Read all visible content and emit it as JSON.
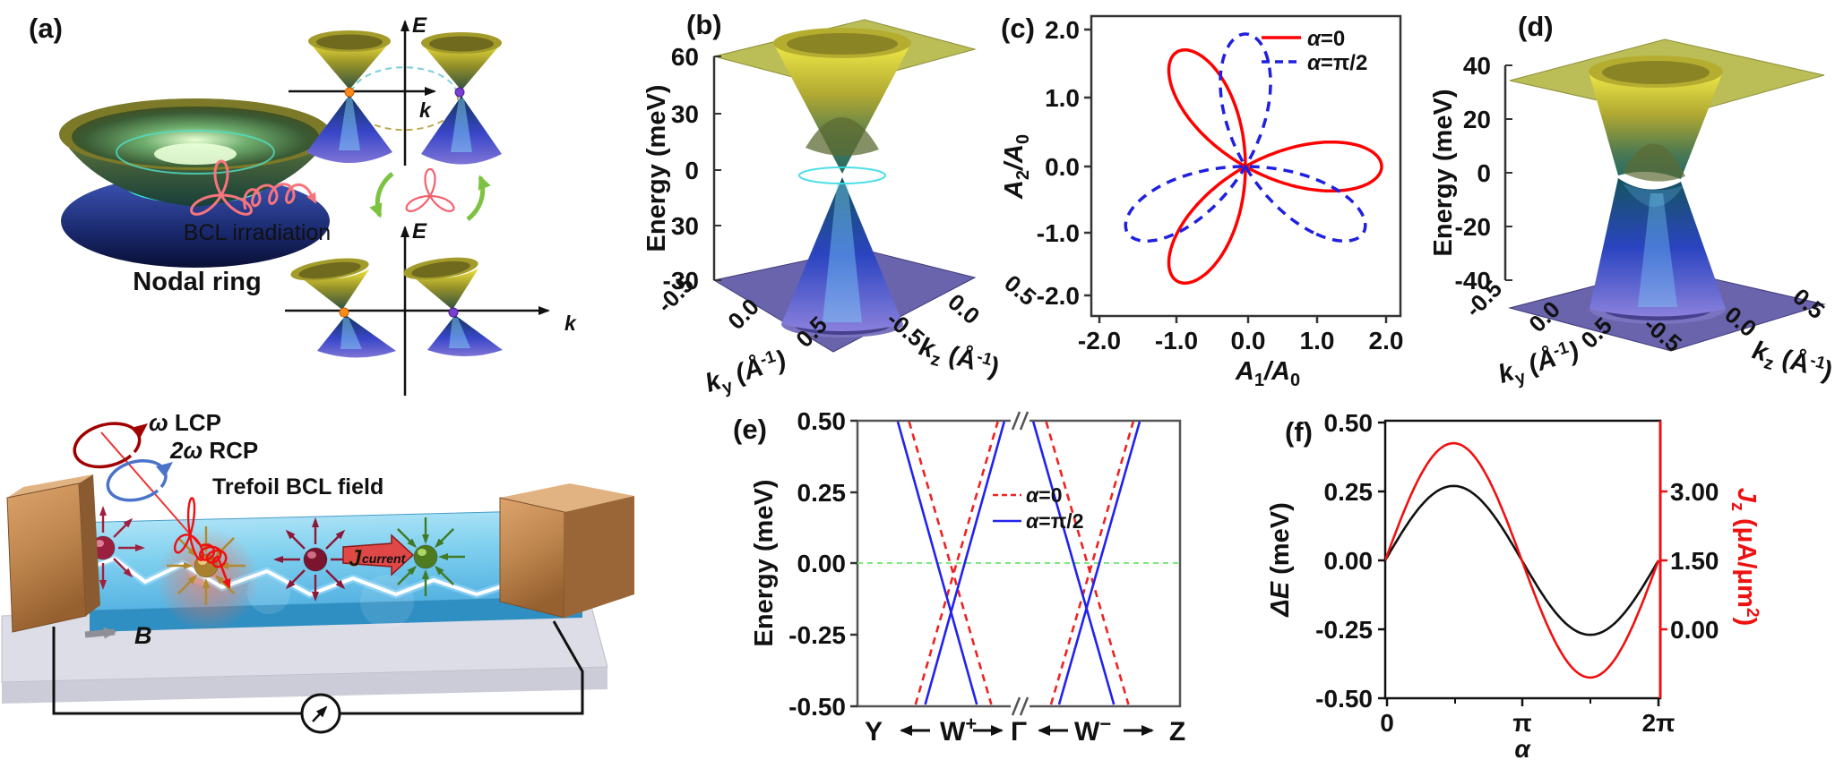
{
  "a": {
    "label": "(a)",
    "nodal_ring": "Nodal ring",
    "bcl": "BCL irradiation",
    "E1": "E",
    "k1": "k",
    "E2": "E",
    "k2": "k",
    "lcp_omega": "ω",
    "lcp": " LCP",
    "rcp_omega": "2ω",
    "rcp": " RCP",
    "trefoil": "Trefoil BCL field",
    "j": "J",
    "jsub": "current",
    "B": "B"
  },
  "b": {
    "label": "(b)",
    "zlabel": "Energy (meV)",
    "zticks": [
      "60",
      "30",
      "0",
      "30",
      "-30"
    ],
    "ky": {
      "k": "k",
      "sub": "y",
      "u1": " (Å",
      "sup": "-1",
      "u2": ")"
    },
    "kz": {
      "k": "k",
      "sub": "z",
      "u1": " (Å",
      "sup": "-1",
      "u2": ")"
    },
    "kyticks": [
      "-0.5",
      "0.0",
      "0.5"
    ],
    "kzticks": [
      "-0.5",
      "0.0",
      "0.5"
    ]
  },
  "c": {
    "label": "(c)",
    "ylabel": {
      "A2": "A",
      "sub2": "2",
      "slash": "/",
      "A0": "A",
      "sub0": "0"
    },
    "xlabel": {
      "A1": "A",
      "sub1": "1",
      "slash": "/",
      "A0": "A",
      "sub0": "0"
    },
    "yticks": [
      "2.0",
      "1.0",
      "0.0",
      "-1.0",
      "-2.0"
    ],
    "xticks": [
      "-2.0",
      "-1.0",
      "0.0",
      "1.0",
      "2.0"
    ],
    "legend": [
      {
        "alpha": "α",
        "rest": "=0"
      },
      {
        "alpha": "α",
        "rest": "=π/2"
      }
    ]
  },
  "d": {
    "label": "(d)",
    "zlabel": "Energy (meV)",
    "zticks": [
      "40",
      "20",
      "0",
      "-20",
      "-40"
    ],
    "ky": {
      "k": "k",
      "sub": "y",
      "u1": " (Å",
      "sup": "-1",
      "u2": ")"
    },
    "kz": {
      "k": "k",
      "sub": "z",
      "u1": " (Å",
      "sup": "-1",
      "u2": ")"
    },
    "kyticks": [
      "-0.5",
      "0.0",
      "0.5"
    ],
    "kzticks": [
      "-0.5",
      "0.0",
      "0.5"
    ]
  },
  "e": {
    "label": "(e)",
    "ylabel": "Energy (meV)",
    "yticks": [
      "0.50",
      "0.25",
      "0.00",
      "-0.25",
      "-0.50"
    ],
    "xpath": {
      "Y": "Y",
      "Wp": "W",
      "Wp_sup": "+",
      "G": "Γ",
      "Wm": "W",
      "Wm_sup": "−",
      "Z": "Z"
    },
    "legend": [
      {
        "alpha": "α",
        "rest": "=0"
      },
      {
        "alpha": "α",
        "rest": "=π/2"
      }
    ]
  },
  "f": {
    "label": "(f)",
    "ylabel_left": {
      "delta": "ΔE",
      "rest": " (meV)"
    },
    "yticks_left": [
      "0.50",
      "0.25",
      "0.00",
      "-0.25",
      "-0.50"
    ],
    "ylabel_right": {
      "J": "J",
      "sub": "z",
      "u1": " (μA/μm",
      "sup": "2",
      "u2": ")"
    },
    "yticks_right": [
      "3.00",
      "1.50",
      "0.00"
    ],
    "xlabel": "α",
    "xticks": [
      "0",
      "π",
      "2π"
    ]
  },
  "chart_data": [
    {
      "id": "b",
      "type": "surface",
      "zlabel": "Energy (meV)",
      "zticks": [
        "60",
        "30",
        "0",
        "30",
        "-30"
      ],
      "xlabel": "ky (Å-1)",
      "xticks": [
        -0.5,
        0.0,
        0.5
      ],
      "ylabel": "kz (Å-1)",
      "yticks": [
        -0.5,
        0.0,
        0.5
      ],
      "content": "double-cone band structure touching at nodal ring near E=0, flat planes at top and bottom"
    },
    {
      "id": "c",
      "type": "parametric-line",
      "xlabel": "A1/A0",
      "ylabel": "A2/A0",
      "xlim": [
        -2.27,
        2.27
      ],
      "ylim": [
        -2.27,
        2.27
      ],
      "xticks": [
        -2.0,
        -1.0,
        0.0,
        1.0,
        2.0
      ],
      "yticks": [
        2.0,
        1.0,
        0.0,
        -1.0,
        -2.0
      ],
      "x_of_t": "cos(t)+cos(2t+phi)",
      "y_of_t": "sin(t)-sin(2t+phi)",
      "t_range": [
        0,
        6.2832
      ],
      "legend_pos": "top-right",
      "series": [
        {
          "name": "α=0",
          "phi": 0,
          "color": "#ff0000",
          "dash": null,
          "width": 3.5
        },
        {
          "name": "α=π/2",
          "phi": 1.5708,
          "color": "#2020e0",
          "dash": "11,8",
          "width": 3.5
        }
      ]
    },
    {
      "id": "e",
      "type": "line",
      "ylabel": "Energy (meV)",
      "ylim": [
        -0.5,
        0.5
      ],
      "yticks": [
        0.5,
        0.25,
        0.0,
        -0.25,
        -0.5
      ],
      "kpath": [
        "Y",
        "W+",
        "Γ",
        "W-",
        "Z"
      ],
      "axis_break_frac": 0.5,
      "fermi_level": 0.0,
      "fermi_color": "#7de87d",
      "series": [
        {
          "name": "α=0",
          "color": "#ee2222",
          "dash": "8,6",
          "width": 2.6,
          "segments": [
            [
              0.16,
              0.5,
              0.415,
              -0.5
            ],
            [
              0.18,
              -0.5,
              0.435,
              0.5
            ],
            [
              0.585,
              0.5,
              0.84,
              -0.5
            ],
            [
              0.6,
              -0.5,
              0.855,
              0.5
            ]
          ]
        },
        {
          "name": "α=π/2",
          "color": "#2222ee",
          "dash": null,
          "width": 2.6,
          "segments": [
            [
              0.125,
              0.5,
              0.37,
              -0.5
            ],
            [
              0.21,
              -0.5,
              0.455,
              0.5
            ],
            [
              0.545,
              0.5,
              0.795,
              -0.5
            ],
            [
              0.625,
              -0.5,
              0.875,
              0.5
            ]
          ]
        }
      ]
    },
    {
      "id": "f",
      "type": "line",
      "xlabel": "α",
      "xticks": [
        "0",
        "π",
        "2π"
      ],
      "xlim_pi": [
        0,
        2
      ],
      "left": {
        "ylabel": "ΔE (meV)",
        "ylim": [
          -0.5,
          0.5
        ],
        "yticks": [
          0.5,
          0.25,
          0.0,
          -0.25,
          -0.5
        ]
      },
      "right": {
        "ylabel": "Jz (μA/μm²)",
        "yticks": [
          3.0,
          1.5,
          0.0
        ],
        "tick_pos_in_left_units": [
          0.25,
          0.0,
          -0.25
        ],
        "units_per_left_unit": 6.0
      },
      "series": [
        {
          "name": "ΔE",
          "axis": "left",
          "color": "#111111",
          "width": 2.6,
          "model": "A*sin(a)",
          "A": 0.27,
          "C": 0
        },
        {
          "name": "Jz",
          "axis": "right",
          "color": "#ee1111",
          "width": 2.6,
          "model": "A*sin(a)+C",
          "A_left_units": 0.425,
          "C_left_units": 0,
          "A_right_units": 2.55,
          "C_right_units": 1.5
        }
      ]
    }
  ]
}
